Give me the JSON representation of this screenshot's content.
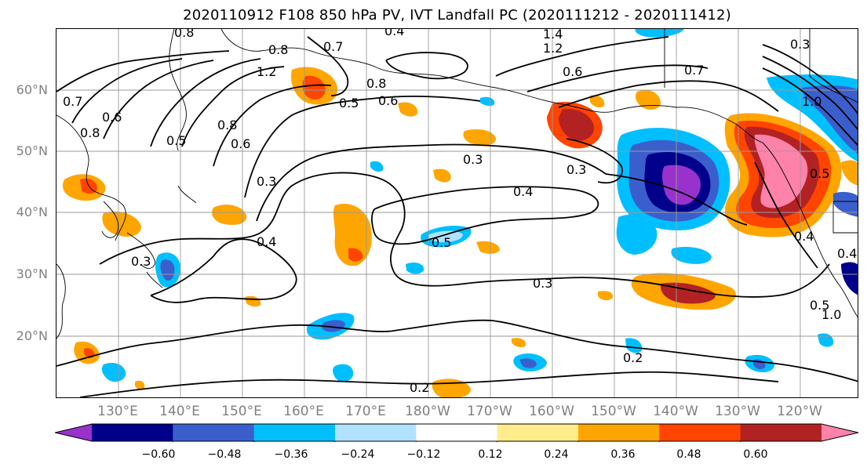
{
  "title": "2020110912 F108 850 hPa PV, IVT Landfall PC (2020111212 - 2020111412)",
  "lat_labels": [
    "60°N",
    "50°N",
    "40°N",
    "30°N",
    "20°N"
  ],
  "lon_labels": [
    "130°E",
    "140°E",
    "150°E",
    "160°E",
    "170°E",
    "180°W",
    "170°W",
    "160°W",
    "150°W",
    "140°W",
    "130°W",
    "120°W"
  ],
  "colorbar": {
    "tick_labels": [
      "−0.60",
      "−0.48",
      "−0.36",
      "−0.24",
      "−0.12",
      "0.12",
      "0.24",
      "0.36",
      "0.48",
      "0.60"
    ],
    "colors": [
      "#9932cc",
      "#00008b",
      "#3a5fcd",
      "#00bfff",
      "#b0e2ff",
      "#ffffff",
      "#ffec8b",
      "#ffa500",
      "#ff4500",
      "#b22222",
      "#ff82ab"
    ]
  },
  "contour_labels": [
    "0.8",
    "0.4",
    "1.4",
    "1.2",
    "0.8",
    "0.7",
    "0.7",
    "0.6",
    "0.7",
    "1.2",
    "0.8",
    "0.6",
    "0.5",
    "0.8",
    "1.0",
    "0.6",
    "0.5",
    "0.8",
    "0.6",
    "0.3",
    "0.3",
    "0.3",
    "0.4",
    "0.5",
    "0.4",
    "0.3",
    "0.3",
    "0.4",
    "0.2",
    "0.2",
    "0.5",
    "1.0",
    "0.4",
    "0.5",
    "0.3"
  ]
}
